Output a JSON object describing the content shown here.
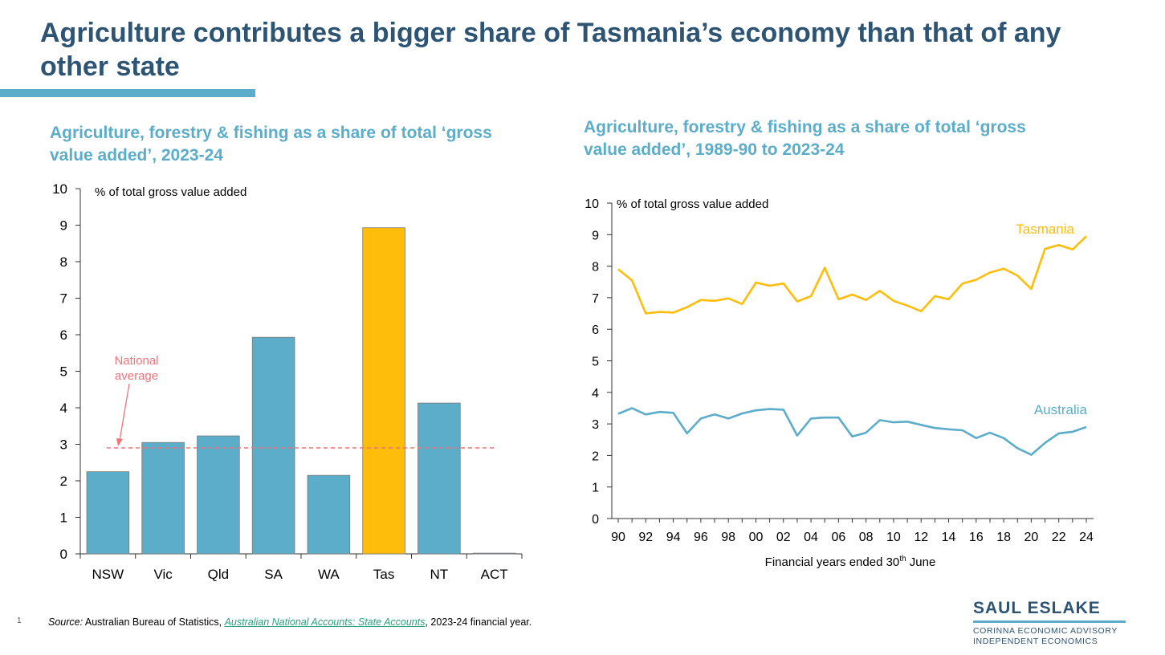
{
  "title": "Agriculture contributes a bigger share of Tasmania’s economy than that of any other state",
  "source": {
    "label": "Source:",
    "text_before": " Australian Bureau of Statistics, ",
    "link": "Australian National Accounts: State Accounts",
    "text_after": ", 2023-24 financial year."
  },
  "page_number": "1",
  "logo": {
    "name": "SAUL ESLAKE",
    "line1": "CORINNA ECONOMIC ADVISORY",
    "line2": "INDEPENDENT ECONOMICS"
  },
  "colors": {
    "title": "#2e5474",
    "accent": "#5badc9",
    "highlight": "#fdbd0a",
    "average": "#f0737a"
  },
  "chart_data": [
    {
      "type": "bar",
      "title": "Agriculture, forestry & fishing as a share of total ‘gross value added’, 2023-24",
      "ylabel": "% of total  gross value added",
      "ylim": [
        0,
        10
      ],
      "yticks": [
        "0",
        "1",
        "2",
        "3",
        "4",
        "5",
        "6",
        "7",
        "8",
        "9",
        "10"
      ],
      "categories": [
        "NSW",
        "Vic",
        "Qld",
        "SA",
        "WA",
        "Tas",
        "NT",
        "ACT"
      ],
      "values": [
        2.25,
        3.05,
        3.23,
        5.93,
        2.15,
        8.93,
        4.13,
        0.02
      ],
      "highlight": "Tas",
      "reference_line": {
        "label_line1": "National",
        "label_line2": "average",
        "value": 2.9
      }
    },
    {
      "type": "line",
      "title": "Agriculture, forestry & fishing as a share of total ‘gross value added’, 1989-90 to 2023-24",
      "ylabel": "% of total gross value added",
      "xlabel": "Financial years ended 30th June",
      "xlabel_main": "Financial years ended 30",
      "xlabel_sup": "th",
      "xlabel_end": " June",
      "ylim": [
        0,
        10
      ],
      "yticks": [
        "0",
        "1",
        "2",
        "3",
        "4",
        "5",
        "6",
        "7",
        "8",
        "9",
        "10"
      ],
      "xlim": [
        1990,
        2024
      ],
      "xticks": [
        {
          "x": 1990,
          "label": "90"
        },
        {
          "x": 1992,
          "label": "92"
        },
        {
          "x": 1994,
          "label": "94"
        },
        {
          "x": 1996,
          "label": "96"
        },
        {
          "x": 1998,
          "label": "98"
        },
        {
          "x": 2000,
          "label": "00"
        },
        {
          "x": 2002,
          "label": "02"
        },
        {
          "x": 2004,
          "label": "04"
        },
        {
          "x": 2006,
          "label": "06"
        },
        {
          "x": 2008,
          "label": "08"
        },
        {
          "x": 2010,
          "label": "10"
        },
        {
          "x": 2012,
          "label": "12"
        },
        {
          "x": 2014,
          "label": "14"
        },
        {
          "x": 2016,
          "label": "16"
        },
        {
          "x": 2018,
          "label": "18"
        },
        {
          "x": 2020,
          "label": "20"
        },
        {
          "x": 2022,
          "label": "22"
        },
        {
          "x": 2024,
          "label": "24"
        }
      ],
      "x": [
        1990,
        1991,
        1992,
        1993,
        1994,
        1995,
        1996,
        1997,
        1998,
        1999,
        2000,
        2001,
        2002,
        2003,
        2004,
        2005,
        2006,
        2007,
        2008,
        2009,
        2010,
        2011,
        2012,
        2013,
        2014,
        2015,
        2016,
        2017,
        2018,
        2019,
        2020,
        2021,
        2022,
        2023,
        2024
      ],
      "series": [
        {
          "name": "Tasmania",
          "color": "#fdbd0a",
          "values": [
            7.9,
            7.55,
            6.5,
            6.55,
            6.53,
            6.7,
            6.93,
            6.9,
            6.98,
            6.8,
            7.48,
            7.38,
            7.45,
            6.88,
            7.05,
            7.95,
            6.95,
            7.1,
            6.93,
            7.22,
            6.9,
            6.75,
            6.57,
            7.05,
            6.95,
            7.45,
            7.57,
            7.8,
            7.92,
            7.7,
            7.28,
            8.55,
            8.67,
            8.53,
            8.95
          ]
        },
        {
          "name": "Australia",
          "color": "#5badc9",
          "values": [
            3.32,
            3.5,
            3.3,
            3.38,
            3.35,
            2.7,
            3.17,
            3.3,
            3.17,
            3.33,
            3.43,
            3.47,
            3.45,
            2.63,
            3.17,
            3.2,
            3.2,
            2.6,
            2.72,
            3.12,
            3.05,
            3.07,
            2.97,
            2.87,
            2.83,
            2.8,
            2.55,
            2.72,
            2.55,
            2.23,
            2.02,
            2.4,
            2.7,
            2.75,
            2.9
          ]
        }
      ]
    }
  ]
}
